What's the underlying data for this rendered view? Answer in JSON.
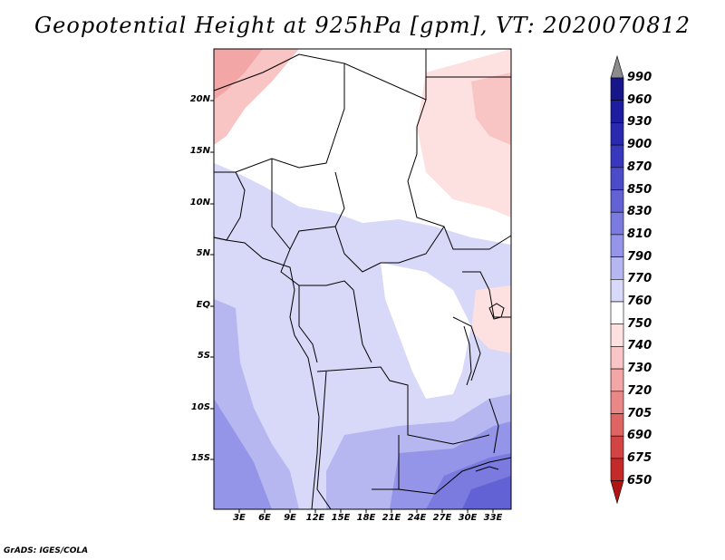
{
  "title": "Geopotential Height at 925hPa [gpm], VT: 2020070812",
  "credit": "GrADS: IGES/COLA",
  "lat_labels": [
    "20N",
    "15N",
    "10N",
    "5N",
    "EQ",
    "5S",
    "10S",
    "15S"
  ],
  "lon_labels": [
    "3E",
    "6E",
    "9E",
    "12E",
    "15E",
    "18E",
    "21E",
    "24E",
    "27E",
    "30E",
    "33E"
  ],
  "colorbar": {
    "levels": [
      990,
      960,
      930,
      900,
      870,
      850,
      830,
      810,
      790,
      770,
      760,
      750,
      740,
      730,
      720,
      705,
      690,
      675,
      650
    ],
    "colors": [
      "#16168a",
      "#1d1da0",
      "#2a2ab0",
      "#3838bf",
      "#4c4ccb",
      "#6262d5",
      "#7a7adf",
      "#9494e8",
      "#b6b6f0",
      "#d8d8f8",
      "#ffffff",
      "#fde0e0",
      "#f8c4c4",
      "#f2a6a6",
      "#ea8787",
      "#df6464",
      "#d24444",
      "#c42a2a",
      "#b01414"
    ],
    "top_arrow": "#8c8c8c"
  }
}
